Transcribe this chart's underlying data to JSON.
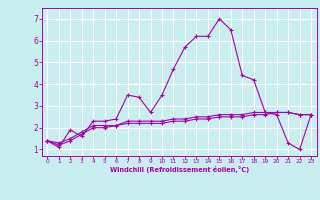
{
  "xlabel": "Windchill (Refroidissement éolien,°C)",
  "background_color": "#c8eef0",
  "grid_color": "#ffffff",
  "line_color": "#aa00aa",
  "xlim": [
    -0.5,
    23.5
  ],
  "ylim": [
    0.7,
    7.5
  ],
  "xticks": [
    0,
    1,
    2,
    3,
    4,
    5,
    6,
    7,
    8,
    9,
    10,
    11,
    12,
    13,
    14,
    15,
    16,
    17,
    18,
    19,
    20,
    21,
    22,
    23
  ],
  "yticks": [
    1,
    2,
    3,
    4,
    5,
    6,
    7
  ],
  "series1": {
    "x": [
      0,
      1,
      2,
      3,
      4,
      5,
      6,
      7,
      8,
      9,
      10,
      11,
      12,
      13,
      14,
      15,
      16,
      17,
      18,
      19,
      20,
      21,
      22,
      23
    ],
    "y": [
      1.4,
      1.1,
      1.9,
      1.6,
      2.3,
      2.3,
      2.4,
      3.5,
      3.4,
      2.7,
      3.5,
      4.7,
      5.7,
      6.2,
      6.2,
      7.0,
      6.5,
      4.4,
      4.2,
      2.7,
      2.6,
      1.3,
      1.0,
      2.6
    ]
  },
  "series2": {
    "x": [
      0,
      1,
      2,
      3,
      4,
      5,
      6,
      7,
      8,
      9,
      10,
      11,
      12,
      13,
      14,
      15,
      16,
      17,
      18,
      19,
      20,
      21,
      22,
      23
    ],
    "y": [
      1.4,
      1.3,
      1.5,
      1.8,
      2.1,
      2.1,
      2.1,
      2.3,
      2.3,
      2.3,
      2.3,
      2.4,
      2.4,
      2.5,
      2.5,
      2.6,
      2.6,
      2.6,
      2.7,
      2.7,
      2.7,
      2.7,
      2.6,
      2.6
    ]
  },
  "series3": {
    "x": [
      0,
      1,
      2,
      3,
      4,
      5,
      6,
      7,
      8,
      9,
      10,
      11,
      12,
      13,
      14,
      15,
      16,
      17,
      18,
      19,
      20,
      21,
      22,
      23
    ],
    "y": [
      1.4,
      1.2,
      1.4,
      1.7,
      2.0,
      2.0,
      2.1,
      2.2,
      2.2,
      2.2,
      2.2,
      2.3,
      2.3,
      2.4,
      2.4,
      2.5,
      2.5,
      2.5,
      2.6,
      2.6,
      2.7,
      2.7,
      2.6,
      2.6
    ]
  }
}
